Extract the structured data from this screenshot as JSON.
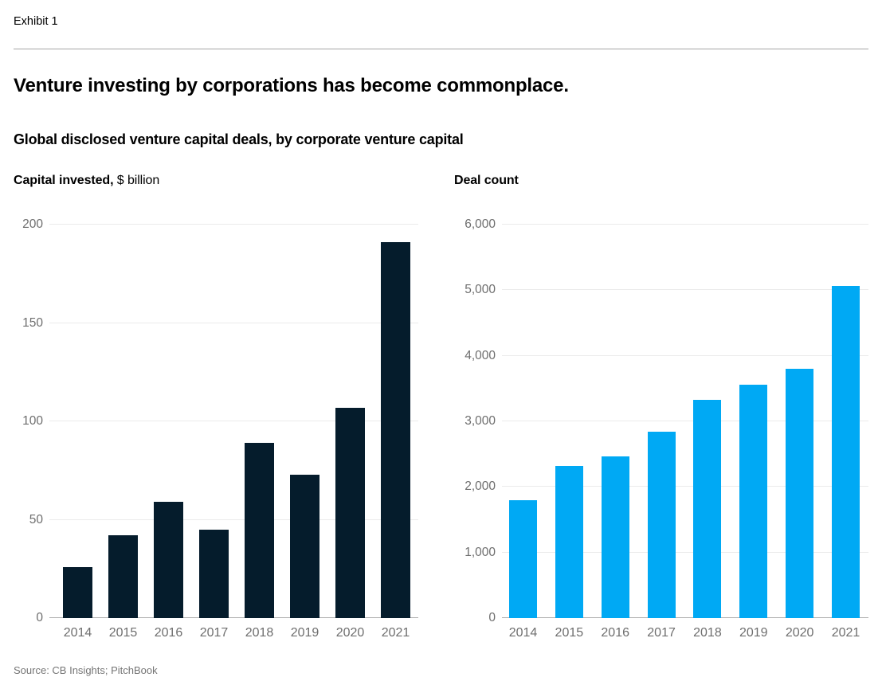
{
  "header": {
    "exhibit_label": "Exhibit 1",
    "title": "Venture investing by corporations has become commonplace.",
    "subtitle": "Global disclosed venture capital deals, by corporate venture capital"
  },
  "footer": {
    "source": "Source: CB Insights; PitchBook"
  },
  "colors": {
    "navy_bar": "#051c2c",
    "blue_bar": "#00a9f4",
    "gridline": "#ebebeb",
    "axis_line": "#ababab",
    "tick_text": "#6e6e6e",
    "divider": "#a6a6a6"
  },
  "chart_data": [
    {
      "type": "bar",
      "title_bold": "Capital invested,",
      "title_unit": " $ billion",
      "categories": [
        "2014",
        "2015",
        "2016",
        "2017",
        "2018",
        "2019",
        "2020",
        "2021"
      ],
      "values": [
        26,
        42,
        59,
        45,
        89,
        73,
        107,
        191
      ],
      "ylim": [
        0,
        200
      ],
      "yticks": [
        0,
        50,
        100,
        150,
        200
      ],
      "ytick_labels": [
        "0",
        "50",
        "100",
        "150",
        "200"
      ],
      "bar_color": "#051c2c",
      "grid": true,
      "legend": "none",
      "xlabel": "",
      "ylabel": "Capital invested, $ billion"
    },
    {
      "type": "bar",
      "title_bold": "Deal count",
      "title_unit": "",
      "categories": [
        "2014",
        "2015",
        "2016",
        "2017",
        "2018",
        "2019",
        "2020",
        "2021"
      ],
      "values": [
        1800,
        2320,
        2460,
        2840,
        3330,
        3560,
        3800,
        5060
      ],
      "ylim": [
        0,
        6000
      ],
      "yticks": [
        0,
        1000,
        2000,
        3000,
        4000,
        5000,
        6000
      ],
      "ytick_labels": [
        "0",
        "1,000",
        "2,000",
        "3,000",
        "4,000",
        "5,000",
        "6,000"
      ],
      "bar_color": "#00a9f4",
      "grid": true,
      "legend": "none",
      "xlabel": "",
      "ylabel": "Deal count"
    }
  ]
}
